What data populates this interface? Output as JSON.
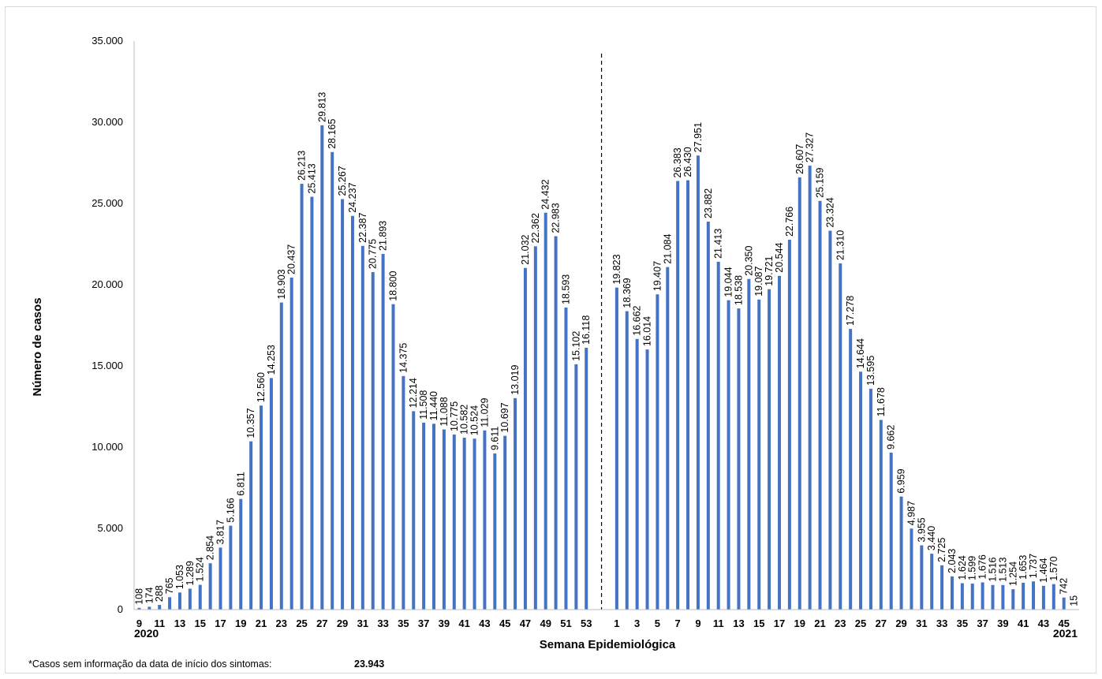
{
  "chart_data": {
    "type": "bar",
    "ylabel": "Número de casos",
    "xlabel": "Semana Epidemiológica",
    "ylim": [
      0,
      35000
    ],
    "yticks": [
      "0",
      "5.000",
      "10.000",
      "15.000",
      "20.000",
      "25.000",
      "30.000",
      "35.000"
    ],
    "ytick_values": [
      0,
      5000,
      10000,
      15000,
      20000,
      25000,
      30000,
      35000
    ],
    "color": "#4472C4",
    "year_start": "2020",
    "year_end": "2021",
    "series": [
      {
        "year": "2020",
        "weeks": [
          9,
          10,
          11,
          12,
          13,
          14,
          15,
          16,
          17,
          18,
          19,
          20,
          21,
          22,
          23,
          24,
          25,
          26,
          27,
          28,
          29,
          30,
          31,
          32,
          33,
          34,
          35,
          36,
          37,
          38,
          39,
          40,
          41,
          42,
          43,
          44,
          45,
          46,
          47,
          48,
          49,
          50,
          51,
          52,
          53
        ],
        "values": [
          108,
          174,
          288,
          765,
          1053,
          1289,
          1524,
          2854,
          3817,
          5166,
          6811,
          10357,
          12560,
          14253,
          18903,
          20437,
          26213,
          25413,
          29813,
          28165,
          25267,
          24237,
          22387,
          20775,
          21893,
          18800,
          14375,
          12214,
          11508,
          11440,
          11088,
          10775,
          10582,
          10524,
          11029,
          9611,
          10697,
          13019,
          21032,
          22362,
          24432,
          22983,
          18593,
          15102,
          16118
        ],
        "labels": [
          "108",
          "174",
          "288",
          "765",
          "1.053",
          "1.289",
          "1.524",
          "2.854",
          "3.817",
          "5.166",
          "6.811",
          "10.357",
          "12.560",
          "14.253",
          "18.903",
          "20.437",
          "26.213",
          "25.413",
          "29.813",
          "28.165",
          "25.267",
          "24.237",
          "22.387",
          "20.775",
          "21.893",
          "18.800",
          "14.375",
          "12.214",
          "11.508",
          "11.440",
          "11.088",
          "10.775",
          "10.582",
          "10.524",
          "11.029",
          "9.611",
          "10.697",
          "13.019",
          "21.032",
          "22.362",
          "24.432",
          "22.983",
          "18.593",
          "15.102",
          "16.118"
        ]
      },
      {
        "year": "2021",
        "weeks": [
          1,
          2,
          3,
          4,
          5,
          6,
          7,
          8,
          9,
          10,
          11,
          12,
          13,
          14,
          15,
          16,
          17,
          18,
          19,
          20,
          21,
          22,
          23,
          24,
          25,
          26,
          27,
          28,
          29,
          30,
          31,
          32,
          33,
          34,
          35,
          36,
          37,
          38,
          39,
          40,
          41,
          42,
          43,
          44,
          45,
          46
        ],
        "values": [
          19823,
          18369,
          16662,
          16014,
          19407,
          21084,
          26383,
          26430,
          27951,
          23882,
          21413,
          19044,
          18538,
          20350,
          19087,
          19721,
          20544,
          22766,
          26607,
          27327,
          25159,
          23324,
          21310,
          17278,
          14644,
          13595,
          11678,
          9662,
          6959,
          4987,
          3955,
          3440,
          2725,
          2043,
          1624,
          1599,
          1676,
          1516,
          1513,
          1254,
          1653,
          1737,
          1464,
          1570,
          742,
          15
        ],
        "labels": [
          "19.823",
          "18.369",
          "16.662",
          "16.014",
          "19.407",
          "21.084",
          "26.383",
          "26.430",
          "27.951",
          "23.882",
          "21.413",
          "19.044",
          "18.538",
          "20.350",
          "19.087",
          "19.721",
          "20.544",
          "22.766",
          "26.607",
          "27.327",
          "25.159",
          "23.324",
          "21.310",
          "17.278",
          "14.644",
          "13.595",
          "11.678",
          "9.662",
          "6.959",
          "4.987",
          "3.955",
          "3.440",
          "2.725",
          "2.043",
          "1.624",
          "1.599",
          "1.676",
          "1.516",
          "1.513",
          "1.254",
          "1.653",
          "1.737",
          "1.464",
          "1.570",
          "742",
          "15"
        ]
      }
    ],
    "xticks_2020": [
      "9",
      "11",
      "13",
      "15",
      "17",
      "19",
      "21",
      "23",
      "25",
      "27",
      "29",
      "31",
      "33",
      "35",
      "37",
      "39",
      "41",
      "43",
      "45",
      "47",
      "49",
      "51",
      "53"
    ],
    "xticks_2021": [
      "1",
      "3",
      "5",
      "7",
      "9",
      "11",
      "13",
      "15",
      "17",
      "19",
      "21",
      "23",
      "25",
      "27",
      "29",
      "31",
      "33",
      "35",
      "37",
      "39",
      "41",
      "43",
      "45"
    ]
  },
  "footnote": {
    "text": "*Casos sem informação da data de início dos sintomas:",
    "value": "23.943"
  }
}
